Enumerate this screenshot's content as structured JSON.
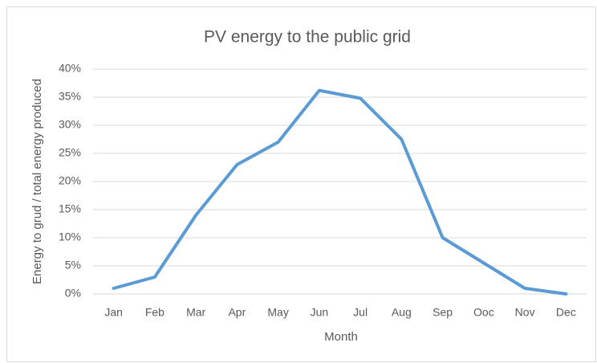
{
  "chart_data": {
    "type": "line",
    "title": "PV energy to the public grid",
    "x_label": "Month",
    "y_label": "Energy to grud / total energy produced",
    "categories": [
      "Jan",
      "Feb",
      "Mar",
      "Apr",
      "May",
      "Jun",
      "Jul",
      "Aug",
      "Sep",
      "Ooc",
      "Nov",
      "Dec"
    ],
    "series": [
      {
        "name": "PV energy to the public grid",
        "color": "#5b9bd5",
        "values": [
          1,
          3,
          14,
          23,
          27,
          36.2,
          34.8,
          27.5,
          10,
          5.5,
          1,
          0
        ]
      }
    ],
    "ylim": [
      0,
      40
    ],
    "yticks": [
      {
        "value": 0,
        "label": "0%"
      },
      {
        "value": 5,
        "label": "5%"
      },
      {
        "value": 10,
        "label": "10%"
      },
      {
        "value": 15,
        "label": "15%"
      },
      {
        "value": 20,
        "label": "20%"
      },
      {
        "value": 25,
        "label": "25%"
      },
      {
        "value": 30,
        "label": "30%"
      },
      {
        "value": 35,
        "label": "35%"
      },
      {
        "value": 40,
        "label": "40%"
      }
    ],
    "grid": true
  }
}
